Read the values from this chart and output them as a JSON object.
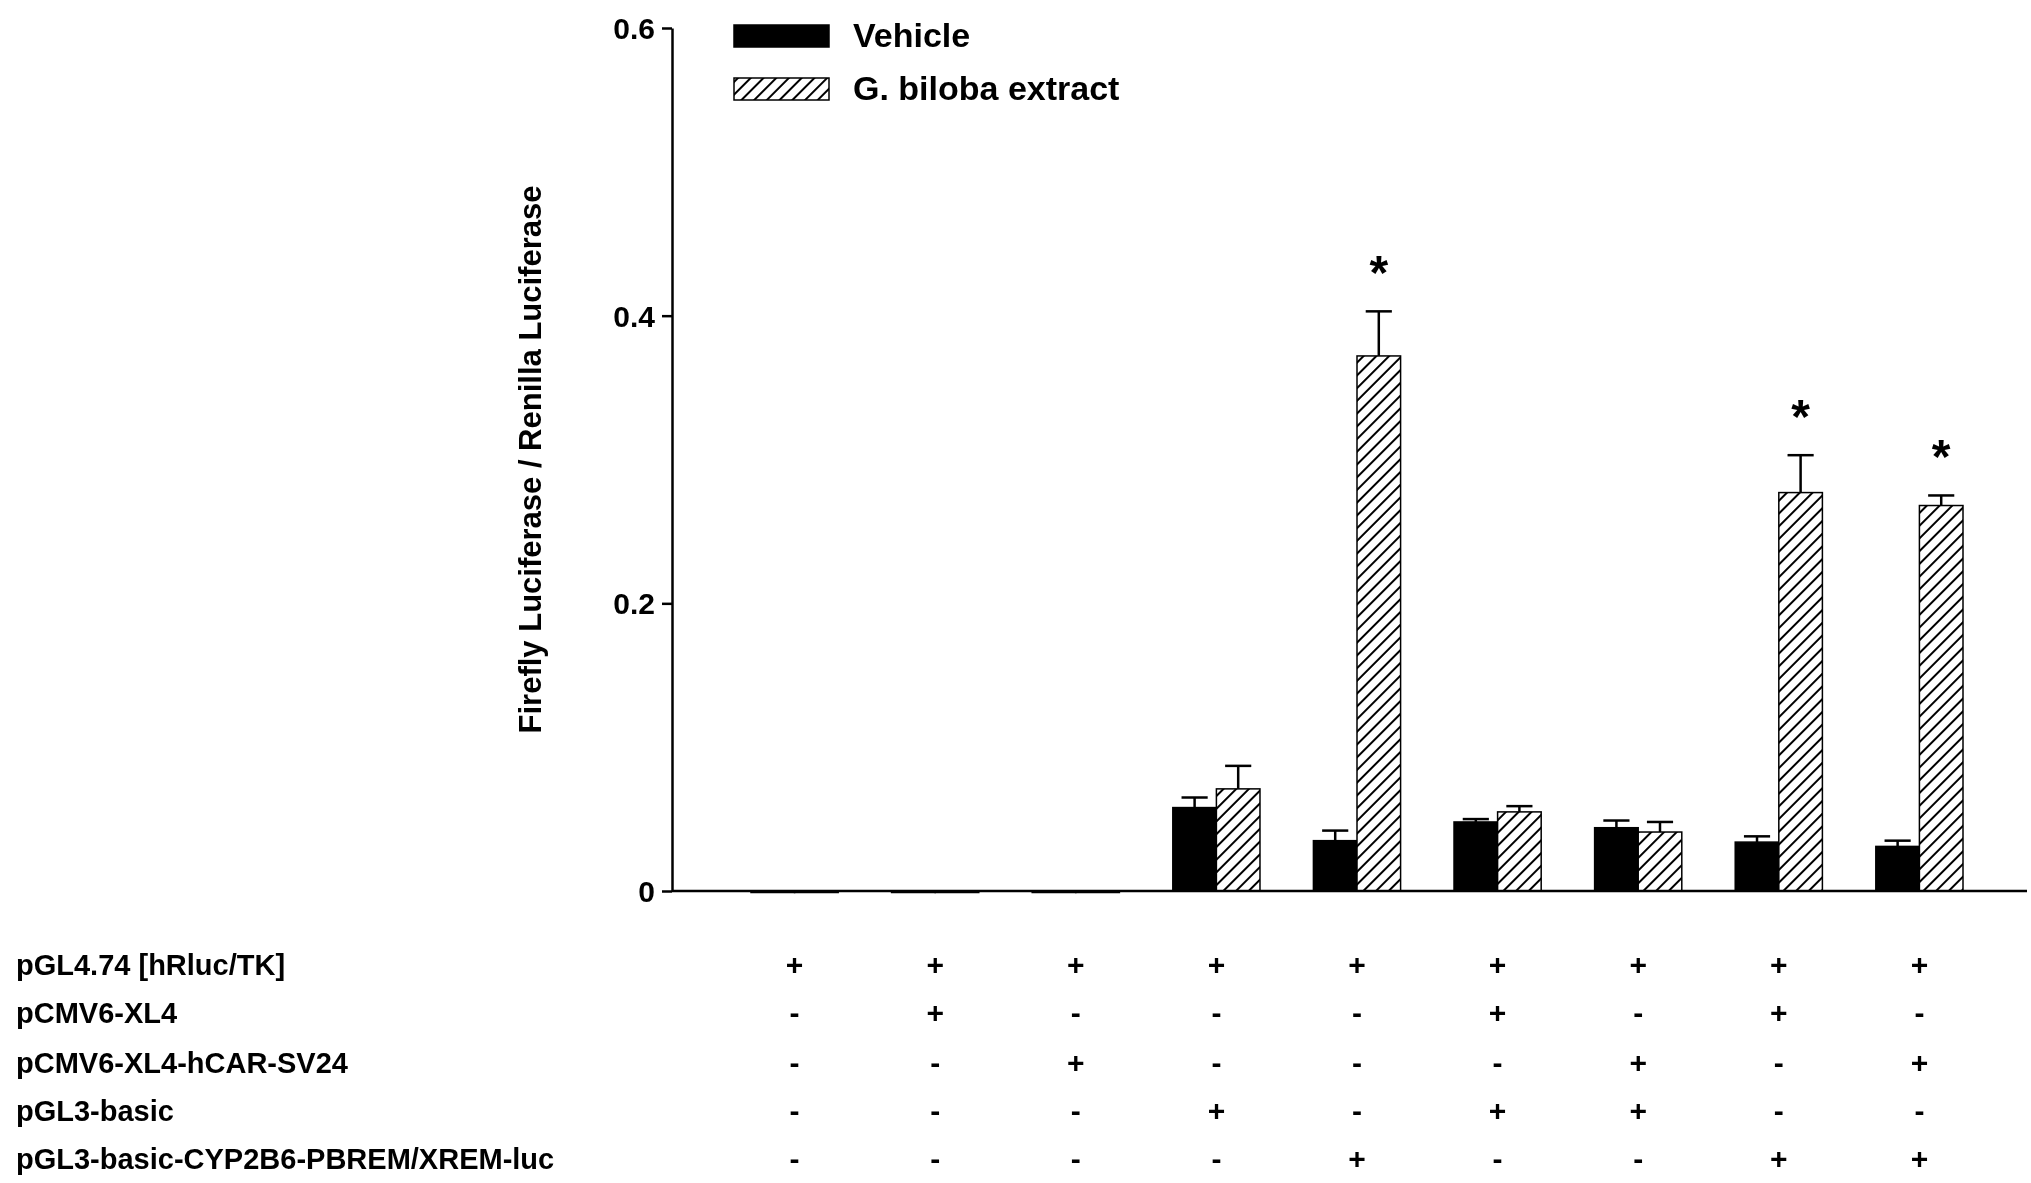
{
  "chart_data": {
    "type": "bar",
    "ylabel": "Firefly Luciferase / Renilla Luciferase",
    "categories": [
      "+\n-\n-\n-\n-",
      "+\n+\n-\n-\n-",
      "+\n-\n+\n-\n-",
      "+\n-\n-\n+\n-",
      "+\n-\n-\n-\n+",
      "+\n+\n-\n+\n-",
      "+\n-\n+\n+\n-",
      "+\n+\n-\n-\n+",
      "+\n-\n+\n-\n+"
    ],
    "series": [
      {
        "name": "Vehicle",
        "color": "#000000",
        "values": [
          0,
          0,
          0,
          0.058,
          0.035,
          0.048,
          0.044,
          0.034,
          0.031
        ],
        "errors": [
          null,
          null,
          null,
          0.007,
          0.007,
          0.002,
          0.005,
          0.004,
          0.004
        ]
      },
      {
        "name": "G. biloba extract",
        "color": "#000000",
        "values": [
          0,
          0,
          0,
          0.071,
          0.372,
          0.055,
          0.041,
          0.277,
          0.268
        ],
        "errors": [
          null,
          null,
          null,
          0.016,
          0.031,
          0.004,
          0.007,
          0.026,
          0.007
        ]
      }
    ],
    "ylim": [
      0,
      0.6
    ],
    "yticks": [
      0,
      {
        "value": 0.2,
        "label": "0.2"
      },
      {
        "value": 0.4,
        "label": "0.4"
      },
      {
        "value": 0.6,
        "label": "0.6"
      }
    ],
    "legend": "top left",
    "grid": false,
    "annotations": [
      "pGL4.74 [hRluc/TK]",
      "pCMV6-XL4",
      "pCMV6-XL4-hCAR-SV24",
      "pGL3-basic",
      "pGL3-basic-CYP2B6-PBREM/XREM-luc",
      {
        "text": "*",
        "x": "+\n-\n-\n-\n+",
        "y": 0.372
      },
      {
        "text": "*",
        "x": "+\n+\n-\n-\n+",
        "y": 0.277
      },
      {
        "text": "*",
        "x": "+\n-\n+\n-\n+",
        "y": 0.268
      }
    ]
  }
}
